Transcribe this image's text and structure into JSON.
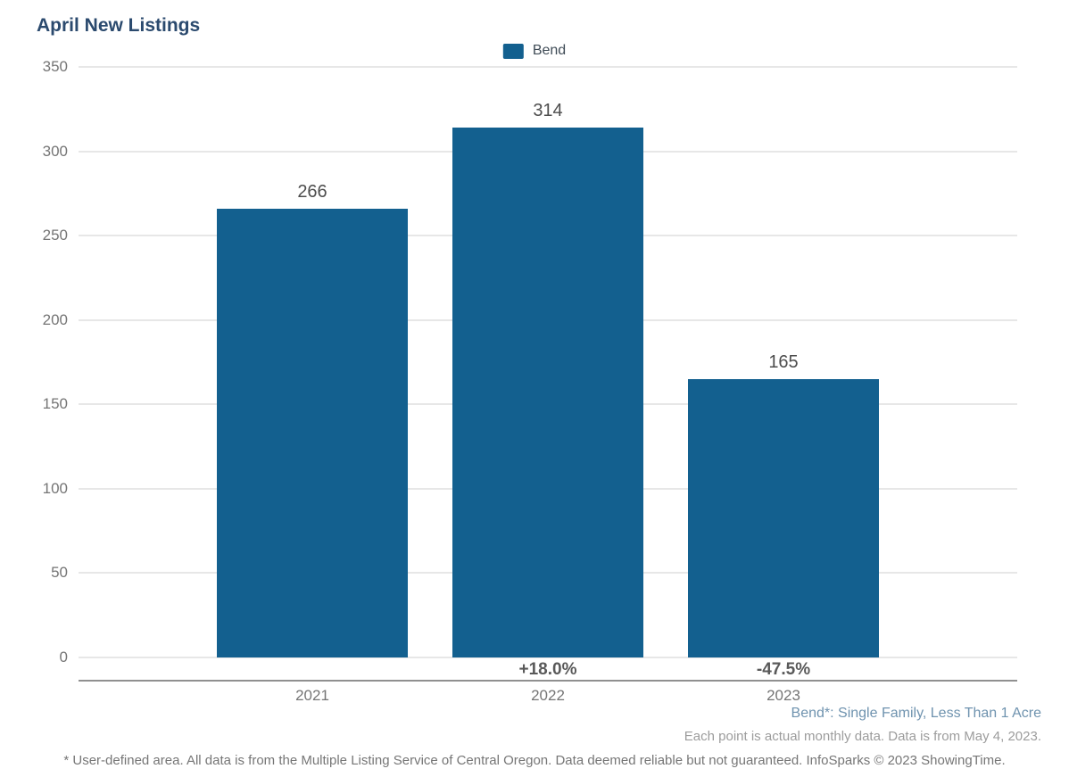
{
  "page": {
    "title": "April New Listings"
  },
  "legend": {
    "label": "Bend",
    "swatch_color": "#13608f"
  },
  "chart_data": {
    "type": "bar",
    "title": "April New Listings",
    "categories": [
      "2021",
      "2022",
      "2023"
    ],
    "series": [
      {
        "name": "Bend",
        "values": [
          266,
          314,
          165
        ],
        "color": "#13608f",
        "pct_change_labels": [
          "",
          "+18.0%",
          "-47.5%"
        ]
      }
    ],
    "value_labels": [
      "266",
      "314",
      "165"
    ],
    "xlabel": "",
    "ylabel": "",
    "ylim": [
      0,
      350
    ],
    "yticks": [
      0,
      50,
      100,
      150,
      200,
      250,
      300,
      350
    ],
    "grid": true,
    "legend_position": "top-center"
  },
  "footer": {
    "series_note": "Bend*: Single Family, Less Than 1 Acre",
    "data_note": "Each point is actual monthly data. Data is from May 4, 2023.",
    "disclaimer": "* User-defined area. All data is from the Multiple Listing Service of Central Oregon. Data deemed reliable but not guaranteed. InfoSparks © 2023 ShowingTime."
  },
  "colors": {
    "bar": "#13608f",
    "title": "#2b4a6e",
    "gridline": "#e7e7e7",
    "axis_line": "#909090",
    "tick_label": "#757575",
    "value_label": "#4d4d4d",
    "pct_label": "#595959",
    "series_note": "#6f93af",
    "data_note": "#9c9c9c",
    "disclaimer": "#767676"
  }
}
